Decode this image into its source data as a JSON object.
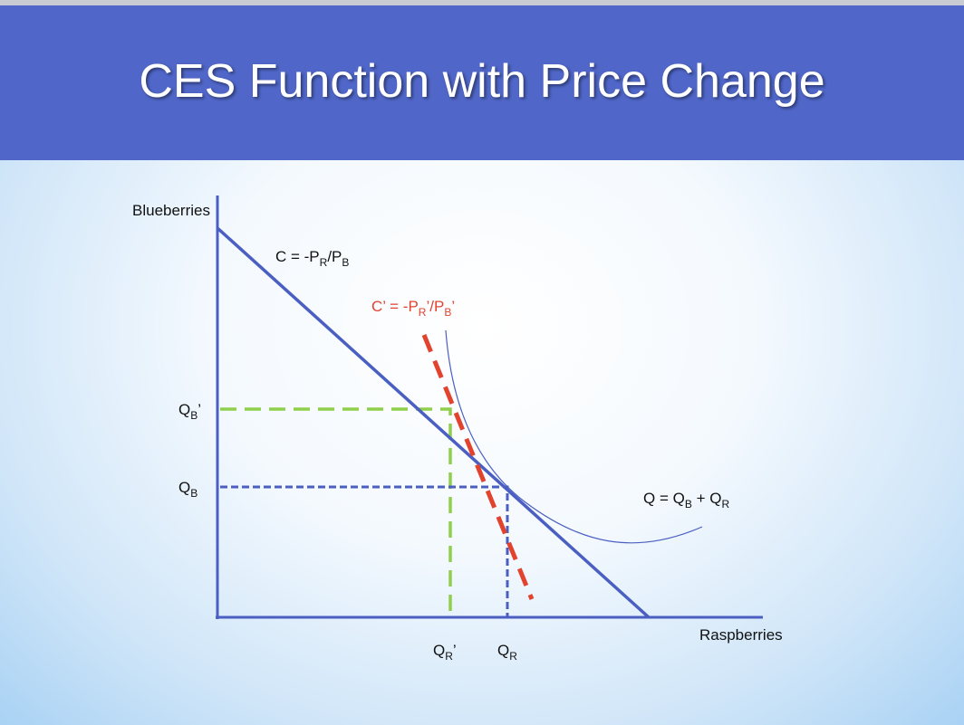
{
  "title": "CES Function with Price Change",
  "y_axis_label": "Blueberries",
  "x_axis_label": "Raspberries",
  "labels": {
    "budget_line": [
      {
        "text": "C = -P"
      },
      {
        "sub": "R"
      },
      {
        "text": "/P"
      },
      {
        "sub": "B"
      }
    ],
    "new_budget_line": [
      {
        "text": "C’ = -P"
      },
      {
        "sub": "R"
      },
      {
        "text": "’/P"
      },
      {
        "sub": "B"
      },
      {
        "text": "’"
      }
    ],
    "curve": [
      {
        "text": "Q = Q"
      },
      {
        "sub": "B"
      },
      {
        "text": " + Q"
      },
      {
        "sub": "R"
      }
    ],
    "q_b_prime": [
      {
        "text": "Q"
      },
      {
        "sub": "B"
      },
      {
        "text": "’"
      }
    ],
    "q_b": [
      {
        "text": "Q"
      },
      {
        "sub": "B"
      }
    ],
    "q_r_prime": [
      {
        "text": "Q"
      },
      {
        "sub": "R"
      },
      {
        "text": "’"
      }
    ],
    "q_r": [
      {
        "text": "Q"
      },
      {
        "sub": "R"
      }
    ]
  }
}
